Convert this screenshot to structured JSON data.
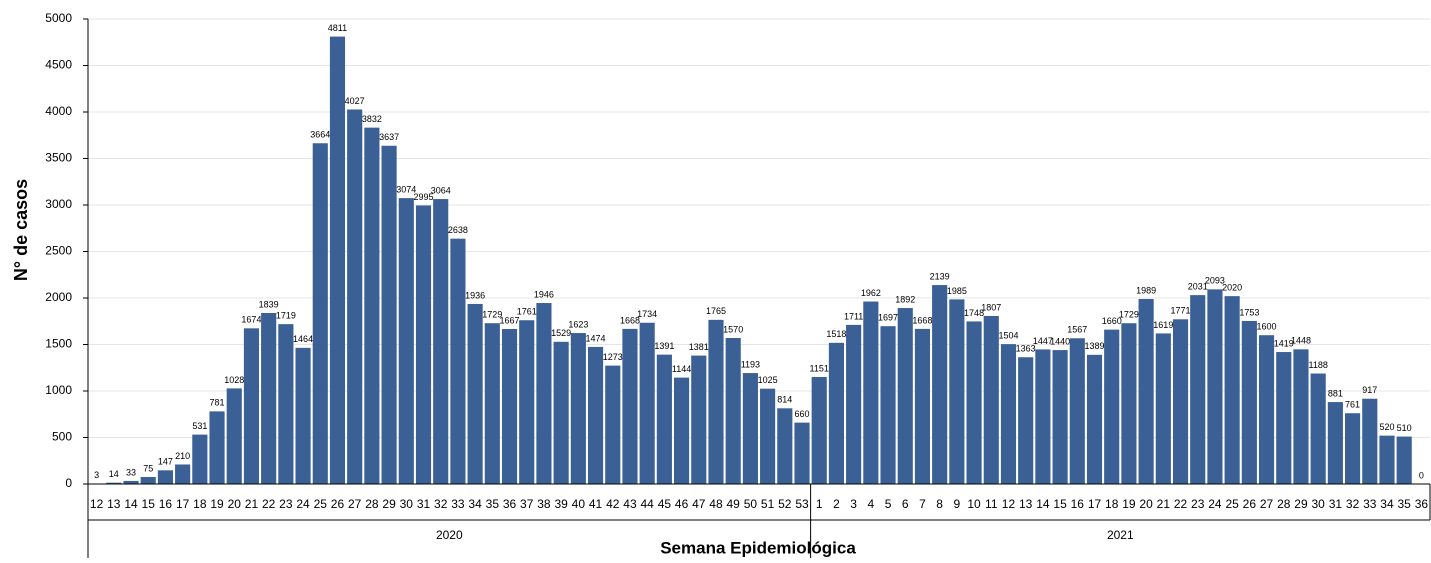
{
  "chart_data": {
    "type": "bar",
    "y_label": "N° de casos",
    "x_label": "Semana Epidemiológica",
    "color": "#3b6096",
    "ylim": [
      0,
      5000
    ],
    "yticks": [
      0,
      500,
      1000,
      1500,
      2000,
      2500,
      3000,
      3500,
      4000,
      4500,
      5000
    ],
    "grid": true,
    "groups": [
      {
        "name": "2020",
        "categories": [
          "12",
          "13",
          "14",
          "15",
          "16",
          "17",
          "18",
          "19",
          "20",
          "21",
          "22",
          "23",
          "24",
          "25",
          "26",
          "27",
          "28",
          "29",
          "30",
          "31",
          "32",
          "33",
          "34",
          "35",
          "36",
          "37",
          "38",
          "39",
          "40",
          "41",
          "42",
          "43",
          "44",
          "45",
          "46",
          "47",
          "48",
          "49",
          "50",
          "51",
          "52",
          "53"
        ],
        "values": [
          3,
          14,
          33,
          75,
          147,
          210,
          531,
          781,
          1028,
          1674,
          1839,
          1719,
          1464,
          3664,
          4811,
          4027,
          3832,
          3637,
          3074,
          2995,
          3064,
          2638,
          1936,
          1729,
          1667,
          1761,
          1946,
          1529,
          1623,
          1474,
          1273,
          1668,
          1734,
          1391,
          1144,
          1381,
          1765,
          1570,
          1193,
          1025,
          814,
          660
        ]
      },
      {
        "name": "2021",
        "categories": [
          "1",
          "2",
          "3",
          "4",
          "5",
          "6",
          "7",
          "8",
          "9",
          "10",
          "11",
          "12",
          "13",
          "14",
          "15",
          "16",
          "17",
          "18",
          "19",
          "20",
          "21",
          "22",
          "23",
          "24",
          "25",
          "26",
          "27",
          "28",
          "29",
          "30",
          "31",
          "32",
          "33",
          "34",
          "35",
          "36"
        ],
        "values": [
          1151,
          1518,
          1711,
          1962,
          1697,
          1892,
          1668,
          2139,
          1985,
          1748,
          1807,
          1504,
          1363,
          1447,
          1440,
          1567,
          1389,
          1660,
          1729,
          1989,
          1619,
          1771,
          2031,
          2093,
          2020,
          1753,
          1600,
          1419,
          1448,
          1188,
          881,
          761,
          917,
          520,
          510,
          0
        ]
      }
    ]
  }
}
